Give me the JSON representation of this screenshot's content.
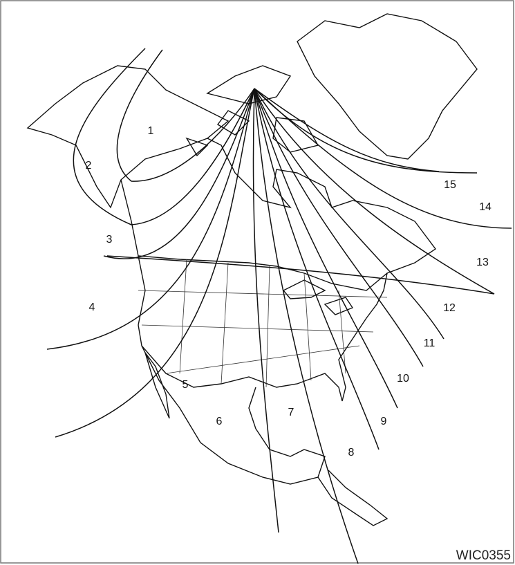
{
  "figure_code": "WIC0355",
  "zones": [
    "1",
    "2",
    "3",
    "4",
    "5",
    "6",
    "7",
    "8",
    "9",
    "10",
    "11",
    "12",
    "13",
    "14",
    "15"
  ]
}
